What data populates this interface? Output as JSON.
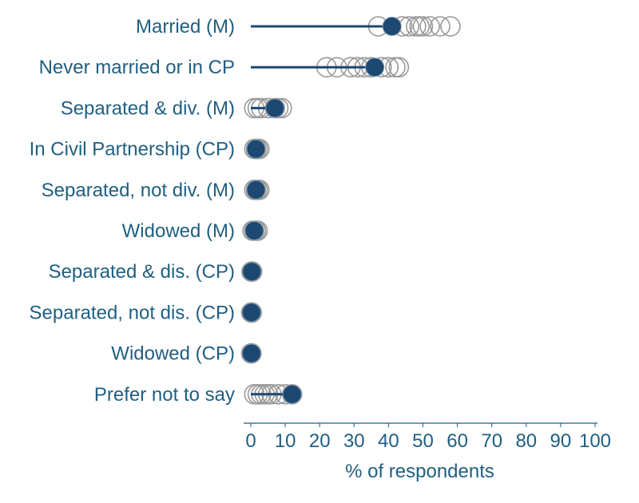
{
  "chart_data": {
    "type": "scatter",
    "xlabel": "% of respondents",
    "xlim": [
      0,
      100
    ],
    "xticks": [
      0,
      10,
      20,
      30,
      40,
      50,
      60,
      70,
      80,
      90,
      100
    ],
    "categories": [
      "Married (M)",
      "Never married or in CP ",
      "Separated & div. (M)",
      "In Civil Partnership (CP)",
      "Separated, not div. (M)",
      "Widowed (M)",
      "Separated & dis. (CP)",
      "Separated, not dis. (CP)",
      "Widowed (CP)",
      "Prefer not to say"
    ],
    "values": [
      41,
      36,
      7,
      1.5,
      1.5,
      1,
      0.3,
      0.2,
      0.2,
      12
    ],
    "comparison_values": [
      [
        37,
        44,
        46,
        48,
        49,
        50,
        52,
        55,
        58
      ],
      [
        22,
        25,
        29,
        31,
        33,
        35,
        38,
        40,
        42,
        43
      ],
      [
        1,
        2,
        3,
        5,
        7,
        8,
        9
      ],
      [
        1,
        1.5,
        2,
        2.5
      ],
      [
        1,
        1.5,
        2,
        2.5
      ],
      [
        0.5,
        1,
        1.5,
        2
      ],
      [
        0.2,
        0.4
      ],
      [
        0.1,
        0.3
      ],
      [
        0.1,
        0.2
      ],
      [
        1,
        2,
        3,
        4,
        5,
        6,
        8,
        10,
        12
      ]
    ],
    "colors": {
      "highlight": "#1c4872",
      "comparison": "#9a9a9a",
      "text": "#1f5f82"
    }
  }
}
